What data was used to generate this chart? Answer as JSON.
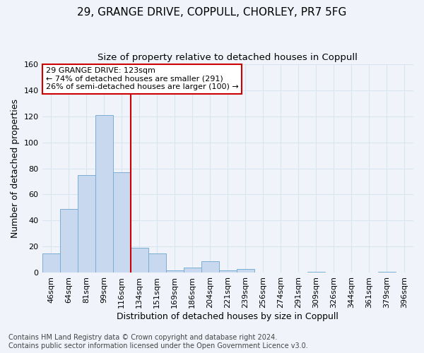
{
  "title_line1": "29, GRANGE DRIVE, COPPULL, CHORLEY, PR7 5FG",
  "title_line2": "Size of property relative to detached houses in Coppull",
  "xlabel": "Distribution of detached houses by size in Coppull",
  "ylabel": "Number of detached properties",
  "bar_labels": [
    "46sqm",
    "64sqm",
    "81sqm",
    "99sqm",
    "116sqm",
    "134sqm",
    "151sqm",
    "169sqm",
    "186sqm",
    "204sqm",
    "221sqm",
    "239sqm",
    "256sqm",
    "274sqm",
    "291sqm",
    "309sqm",
    "326sqm",
    "344sqm",
    "361sqm",
    "379sqm",
    "396sqm"
  ],
  "bar_values": [
    15,
    49,
    75,
    121,
    77,
    19,
    15,
    2,
    4,
    9,
    2,
    3,
    0,
    0,
    0,
    1,
    0,
    0,
    0,
    1,
    0
  ],
  "bar_color": "#c8d8ee",
  "bar_edge_color": "#7aaed4",
  "ylim": [
    0,
    160
  ],
  "yticks": [
    0,
    20,
    40,
    60,
    80,
    100,
    120,
    140,
    160
  ],
  "property_line_x": 4.5,
  "annotation_line1": "29 GRANGE DRIVE: 123sqm",
  "annotation_line2": "← 74% of detached houses are smaller (291)",
  "annotation_line3": "26% of semi-detached houses are larger (100) →",
  "annotation_box_color": "#ffffff",
  "annotation_box_edge_color": "#cc0000",
  "vline_color": "#cc0000",
  "footer_line1": "Contains HM Land Registry data © Crown copyright and database right 2024.",
  "footer_line2": "Contains public sector information licensed under the Open Government Licence v3.0.",
  "bg_color": "#f0f4fa",
  "grid_color": "#d8e4f0",
  "title_fontsize": 11,
  "subtitle_fontsize": 9.5,
  "axis_label_fontsize": 9,
  "tick_fontsize": 8,
  "footer_fontsize": 7,
  "annotation_fontsize": 8
}
